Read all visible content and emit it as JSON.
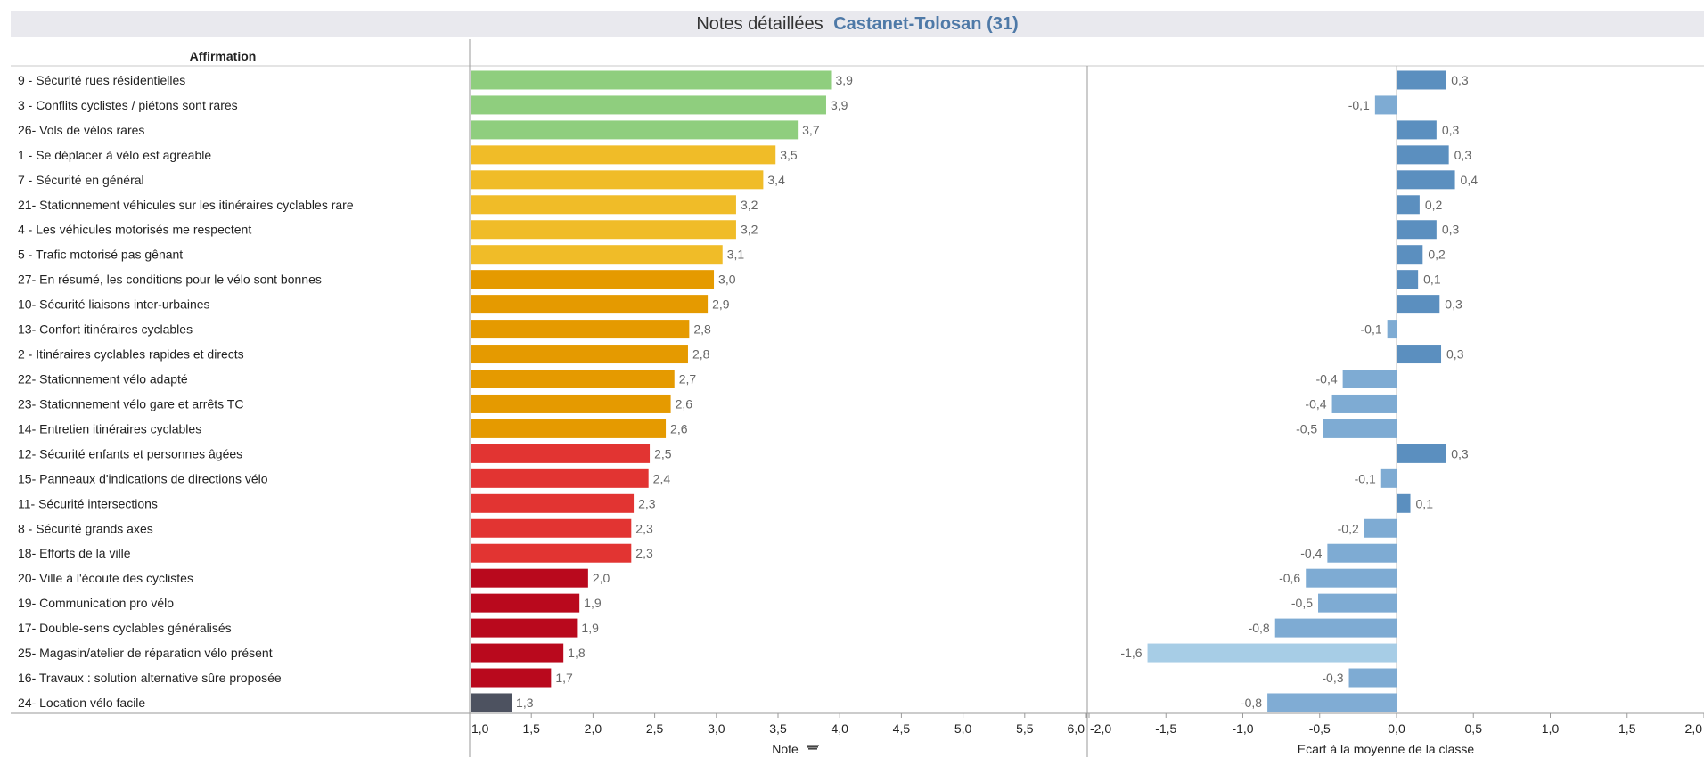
{
  "title": {
    "prefix": "Notes détaillées",
    "city": "Castanet-Tolosan (31)"
  },
  "column_header": "Affirmation",
  "chart_data": [
    {
      "type": "bar",
      "orientation": "horizontal",
      "xlabel": "Note",
      "xlim": [
        1.0,
        6.0
      ],
      "xticks": [
        "1,0",
        "1,5",
        "2,0",
        "2,5",
        "3,0",
        "3,5",
        "4,0",
        "4,5",
        "5,0",
        "5,5",
        "6,0"
      ],
      "categories": [
        "9 - Sécurité rues résidentielles",
        "3 - Conflits cyclistes / piétons sont rares",
        "26- Vols de vélos rares",
        "1 - Se déplacer à vélo est agréable",
        "7 - Sécurité en général",
        "21- Stationnement véhicules sur les itinéraires cyclables rare",
        "4 - Les véhicules motorisés me respectent",
        "5 - Trafic motorisé pas gênant",
        "27- En résumé, les conditions pour le vélo sont bonnes",
        "10- Sécurité liaisons inter-urbaines",
        "13- Confort itinéraires cyclables",
        "2 - Itinéraires cyclables rapides et directs",
        "22- Stationnement vélo adapté",
        "23- Stationnement vélo gare et arrêts TC",
        "14- Entretien itinéraires cyclables",
        "12- Sécurité enfants et personnes âgées",
        "15- Panneaux d'indications de directions vélo",
        "11- Sécurité intersections",
        "8 - Sécurité grands axes",
        "18- Efforts de la ville",
        "20- Ville à l'écoute des cyclistes",
        "19- Communication pro vélo",
        "17- Double-sens cyclables généralisés",
        "25- Magasin/atelier de réparation vélo présent",
        "16- Travaux : solution alternative sûre proposée",
        "24- Location vélo facile"
      ],
      "values": [
        3.93,
        3.89,
        3.66,
        3.48,
        3.38,
        3.16,
        3.16,
        3.05,
        2.98,
        2.93,
        2.78,
        2.77,
        2.66,
        2.63,
        2.59,
        2.46,
        2.45,
        2.33,
        2.31,
        2.31,
        1.96,
        1.89,
        1.87,
        1.76,
        1.66,
        1.34
      ],
      "value_labels": [
        "3,9",
        "3,9",
        "3,7",
        "3,5",
        "3,4",
        "3,2",
        "3,2",
        "3,1",
        "3,0",
        "2,9",
        "2,8",
        "2,8",
        "2,7",
        "2,6",
        "2,6",
        "2,5",
        "2,4",
        "2,3",
        "2,3",
        "2,3",
        "2,0",
        "1,9",
        "1,9",
        "1,8",
        "1,7",
        "1,3"
      ],
      "colors": [
        "#8fce7e",
        "#8fce7e",
        "#8fce7e",
        "#f0bc28",
        "#f0bc28",
        "#f0bc28",
        "#f0bc28",
        "#f0bc28",
        "#e59a00",
        "#e59a00",
        "#e59a00",
        "#e59a00",
        "#e59a00",
        "#e59a00",
        "#e59a00",
        "#e23432",
        "#e23432",
        "#e23432",
        "#e23432",
        "#e23432",
        "#b9091d",
        "#b9091d",
        "#b9091d",
        "#b9091d",
        "#b9091d",
        "#4d5260"
      ]
    },
    {
      "type": "bar",
      "orientation": "horizontal",
      "xlabel": "Ecart à la moyenne de la classe",
      "xlim": [
        -2.0,
        2.0
      ],
      "xticks": [
        "-2,0",
        "-1,5",
        "-1,0",
        "-0,5",
        "0,0",
        "0,5",
        "1,0",
        "1,5",
        "2,0"
      ],
      "values": [
        0.32,
        -0.14,
        0.26,
        0.34,
        0.38,
        0.15,
        0.26,
        0.17,
        0.14,
        0.28,
        -0.06,
        0.29,
        -0.35,
        -0.42,
        -0.48,
        0.32,
        -0.1,
        0.09,
        -0.21,
        -0.45,
        -0.59,
        -0.51,
        -0.79,
        -1.62,
        -0.31,
        -0.84
      ],
      "value_labels": [
        "0,3",
        "-0,1",
        "0,3",
        "0,3",
        "0,4",
        "0,2",
        "0,3",
        "0,2",
        "0,1",
        "0,3",
        "-0,1",
        "0,3",
        "-0,4",
        "-0,4",
        "-0,5",
        "0,3",
        "-0,1",
        "0,1",
        "-0,2",
        "-0,4",
        "-0,6",
        "-0,5",
        "-0,8",
        "-1,6",
        "-0,3",
        "-0,8"
      ],
      "positive_color": "#5b8fbf",
      "negative_color_range": [
        "#7eabd3",
        "#a7cde6"
      ]
    }
  ]
}
